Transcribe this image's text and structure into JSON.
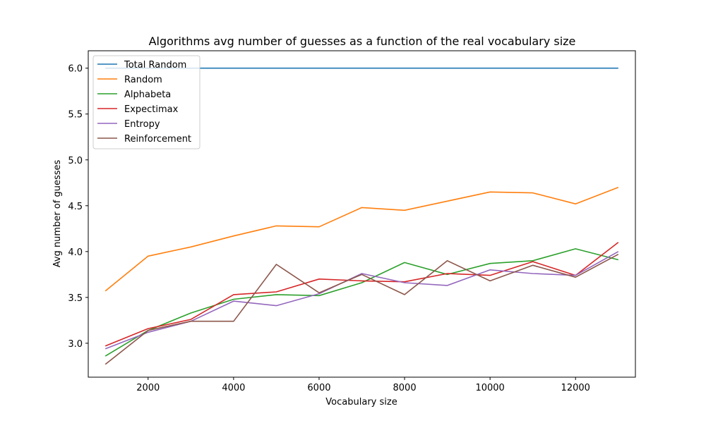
{
  "chart_data": {
    "type": "line",
    "title": "Algorithms avg number of guesses as a function of the real vocabulary size",
    "xlabel": "Vocabulary size",
    "ylabel": "Avg number of guesses",
    "xlim": [
      600,
      13400
    ],
    "ylim": [
      2.63,
      6.19
    ],
    "xticks": [
      2000,
      4000,
      6000,
      8000,
      10000,
      12000
    ],
    "yticks": [
      3.0,
      3.5,
      4.0,
      4.5,
      5.0,
      5.5,
      6.0
    ],
    "xtick_labels": [
      "2000",
      "4000",
      "6000",
      "8000",
      "10000",
      "12000"
    ],
    "ytick_labels": [
      "3.0",
      "3.5",
      "4.0",
      "4.5",
      "5.0",
      "5.5",
      "6.0"
    ],
    "grid": false,
    "legend_position": "upper-left",
    "x": [
      1000,
      2000,
      3000,
      4000,
      5000,
      6000,
      7000,
      8000,
      9000,
      10000,
      11000,
      12000,
      13000
    ],
    "series": [
      {
        "name": "Total Random",
        "color": "#1f77b4",
        "values": [
          6.0,
          6.0,
          6.0,
          6.0,
          6.0,
          6.0,
          6.0,
          6.0,
          6.0,
          6.0,
          6.0,
          6.0,
          6.0
        ]
      },
      {
        "name": "Random",
        "color": "#ff7f0e",
        "values": [
          3.57,
          3.95,
          4.05,
          4.17,
          4.28,
          4.27,
          4.48,
          4.45,
          4.55,
          4.65,
          4.64,
          4.52,
          4.7
        ]
      },
      {
        "name": "Alphabeta",
        "color": "#2ca02c",
        "values": [
          2.86,
          3.14,
          3.33,
          3.48,
          3.53,
          3.52,
          3.66,
          3.88,
          3.75,
          3.87,
          3.9,
          4.03,
          3.91
        ]
      },
      {
        "name": "Expectimax",
        "color": "#d62728",
        "values": [
          2.97,
          3.16,
          3.26,
          3.53,
          3.56,
          3.7,
          3.68,
          3.67,
          3.76,
          3.74,
          3.89,
          3.74,
          4.1
        ]
      },
      {
        "name": "Entropy",
        "color": "#9467bd",
        "values": [
          2.94,
          3.12,
          3.24,
          3.46,
          3.41,
          3.54,
          3.76,
          3.66,
          3.63,
          3.8,
          3.76,
          3.74,
          4.0
        ]
      },
      {
        "name": "Reinforcement",
        "color": "#8c564b",
        "values": [
          2.77,
          3.14,
          3.24,
          3.24,
          3.86,
          3.55,
          3.75,
          3.53,
          3.9,
          3.68,
          3.85,
          3.72,
          3.97
        ]
      }
    ]
  }
}
